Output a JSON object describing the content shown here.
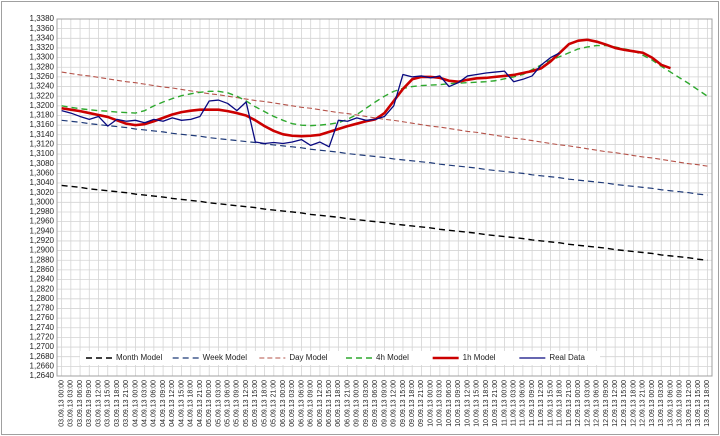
{
  "chart_data": {
    "type": "line",
    "categories": [
      "03.09.13 00:00",
      "03.09.13 03:00",
      "03.09.13 06:00",
      "03.09.13 09:00",
      "03.09.13 12:00",
      "03.09.13 15:00",
      "03.09.13 18:00",
      "03.09.13 21:00",
      "04.09.13 00:00",
      "04.09.13 03:00",
      "04.09.13 06:00",
      "04.09.13 09:00",
      "04.09.13 12:00",
      "04.09.13 15:00",
      "04.09.13 18:00",
      "04.09.13 21:00",
      "05.09.13 00:00",
      "05.09.13 03:00",
      "05.09.13 06:00",
      "05.09.13 09:00",
      "05.09.13 12:00",
      "05.09.13 15:00",
      "05.09.13 18:00",
      "05.09.13 21:00",
      "06.09.13 00:00",
      "06.09.13 03:00",
      "06.09.13 06:00",
      "06.09.13 09:00",
      "06.09.13 12:00",
      "06.09.13 15:00",
      "06.09.13 18:00",
      "06.09.13 21:00",
      "09.09.13 00:00",
      "09.09.13 03:00",
      "09.09.13 06:00",
      "09.09.13 09:00",
      "09.09.13 12:00",
      "09.09.13 15:00",
      "09.09.13 18:00",
      "09.09.13 21:00",
      "10.09.13 00:00",
      "10.09.13 03:00",
      "10.09.13 06:00",
      "10.09.13 09:00",
      "10.09.13 12:00",
      "10.09.13 15:00",
      "10.09.13 18:00",
      "10.09.13 21:00",
      "11.09.13 00:00",
      "11.09.13 03:00",
      "11.09.13 06:00",
      "11.09.13 09:00",
      "11.09.13 12:00",
      "11.09.13 15:00",
      "11.09.13 18:00",
      "11.09.13 21:00",
      "12.09.13 00:00",
      "12.09.13 03:00",
      "12.09.13 06:00",
      "12.09.13 09:00",
      "12.09.13 12:00",
      "12.09.13 15:00",
      "12.09.13 18:00",
      "12.09.13 21:00",
      "13.09.13 00:00",
      "13.09.13 03:00",
      "13.09.13 06:00",
      "13.09.13 09:00",
      "13.09.13 12:00",
      "13.09.13 15:00",
      "13.09.13 18:00"
    ],
    "series": [
      {
        "name": "Month Model",
        "color": "#000000",
        "dash": "6,4",
        "width": 1.4,
        "values": [
          1.3035,
          1.3033,
          1.3031,
          1.3028,
          1.3026,
          1.3024,
          1.3022,
          1.302,
          1.3017,
          1.3015,
          1.3013,
          1.3011,
          1.3008,
          1.3006,
          1.3004,
          1.3002,
          1.2999,
          1.2997,
          1.2995,
          1.2993,
          1.2991,
          1.2989,
          1.2986,
          1.2984,
          1.2982,
          1.298,
          1.2978,
          1.2975,
          1.2973,
          1.2971,
          1.2969,
          1.2966,
          1.2964,
          1.2962,
          1.296,
          1.2958,
          1.2955,
          1.2953,
          1.2951,
          1.2949,
          1.2947,
          1.2944,
          1.2942,
          1.294,
          1.2938,
          1.2936,
          1.2933,
          1.2931,
          1.2929,
          1.2927,
          1.2925,
          1.2922,
          1.292,
          1.2918,
          1.2916,
          1.2913,
          1.2911,
          1.2909,
          1.2907,
          1.2905,
          1.2902,
          1.29,
          1.2898,
          1.2896,
          1.2894,
          1.2891,
          1.2889,
          1.2887,
          1.2885,
          1.2882,
          1.288
        ]
      },
      {
        "name": "Week Model",
        "color": "#1f3a78",
        "dash": "6,4",
        "width": 1.2,
        "values": [
          1.317,
          1.3168,
          1.3166,
          1.3163,
          1.3161,
          1.3159,
          1.3157,
          1.3155,
          1.3152,
          1.315,
          1.3148,
          1.3146,
          1.3143,
          1.3141,
          1.3139,
          1.3137,
          1.3134,
          1.3132,
          1.313,
          1.3128,
          1.3126,
          1.3124,
          1.3121,
          1.3119,
          1.3117,
          1.3115,
          1.3113,
          1.311,
          1.3108,
          1.3106,
          1.3104,
          1.3101,
          1.3099,
          1.3097,
          1.3095,
          1.3093,
          1.309,
          1.3088,
          1.3086,
          1.3084,
          1.3082,
          1.3079,
          1.3077,
          1.3075,
          1.3073,
          1.3071,
          1.3068,
          1.3066,
          1.3064,
          1.3062,
          1.306,
          1.3057,
          1.3055,
          1.3053,
          1.3051,
          1.3048,
          1.3046,
          1.3044,
          1.3042,
          1.304,
          1.3037,
          1.3035,
          1.3033,
          1.3031,
          1.3029,
          1.3026,
          1.3024,
          1.3022,
          1.302,
          1.3017,
          1.3015
        ]
      },
      {
        "name": "Day Model",
        "color": "#b5534a",
        "dash": "5,3",
        "width": 1.1,
        "values": [
          1.327,
          1.3267,
          1.3264,
          1.3262,
          1.3259,
          1.3256,
          1.3253,
          1.325,
          1.3248,
          1.3245,
          1.3242,
          1.3239,
          1.3237,
          1.3234,
          1.3231,
          1.3228,
          1.3225,
          1.3223,
          1.322,
          1.3217,
          1.3214,
          1.3211,
          1.3209,
          1.3206,
          1.3203,
          1.32,
          1.3197,
          1.3195,
          1.3192,
          1.3189,
          1.3186,
          1.3184,
          1.3181,
          1.3178,
          1.3175,
          1.3172,
          1.317,
          1.3167,
          1.3164,
          1.3161,
          1.3158,
          1.3156,
          1.3153,
          1.315,
          1.3147,
          1.3145,
          1.3142,
          1.3139,
          1.3136,
          1.3133,
          1.3131,
          1.3128,
          1.3125,
          1.3122,
          1.3119,
          1.3117,
          1.3114,
          1.3111,
          1.3108,
          1.3105,
          1.3103,
          1.31,
          1.3097,
          1.3094,
          1.3092,
          1.3089,
          1.3086,
          1.3083,
          1.308,
          1.3078,
          1.3075
        ]
      },
      {
        "name": "4h Model",
        "color": "#2ea82e",
        "dash": "6,4",
        "width": 1.4,
        "values": [
          1.32,
          1.3197,
          1.3194,
          1.3192,
          1.319,
          1.3189,
          1.3187,
          1.3186,
          1.3185,
          1.319,
          1.32,
          1.3208,
          1.3215,
          1.3221,
          1.3225,
          1.3228,
          1.323,
          1.323,
          1.3227,
          1.322,
          1.321,
          1.3198,
          1.3188,
          1.3178,
          1.317,
          1.3163,
          1.316,
          1.3159,
          1.316,
          1.3162,
          1.3165,
          1.3172,
          1.3182,
          1.3195,
          1.3208,
          1.322,
          1.323,
          1.3236,
          1.324,
          1.3242,
          1.3243,
          1.3244,
          1.3246,
          1.3247,
          1.3248,
          1.3249,
          1.325,
          1.3252,
          1.3256,
          1.326,
          1.3265,
          1.3275,
          1.3285,
          1.3295,
          1.3302,
          1.331,
          1.3318,
          1.3322,
          1.3325,
          1.3325,
          1.3322,
          1.3318,
          1.3314,
          1.3305,
          1.3295,
          1.3282,
          1.327,
          1.3258,
          1.3246,
          1.3233,
          1.322
        ]
      },
      {
        "name": "1h Model",
        "color": "#cc0000",
        "dash": "none",
        "width": 2.6,
        "values": [
          1.3195,
          1.3192,
          1.3189,
          1.3185,
          1.3181,
          1.3177,
          1.317,
          1.3163,
          1.316,
          1.3162,
          1.3168,
          1.3175,
          1.3182,
          1.3187,
          1.319,
          1.3192,
          1.3192,
          1.3192,
          1.3189,
          1.3185,
          1.318,
          1.317,
          1.3158,
          1.3148,
          1.3141,
          1.3138,
          1.3137,
          1.3138,
          1.314,
          1.3146,
          1.3152,
          1.3158,
          1.3163,
          1.3168,
          1.3172,
          1.3185,
          1.321,
          1.3235,
          1.3255,
          1.326,
          1.326,
          1.3258,
          1.3252,
          1.325,
          1.3254,
          1.3257,
          1.3258,
          1.326,
          1.3262,
          1.3264,
          1.3268,
          1.3272,
          1.3278,
          1.3292,
          1.331,
          1.3328,
          1.3335,
          1.3337,
          1.3333,
          1.3327,
          1.332,
          1.3316,
          1.3313,
          1.331,
          1.33,
          1.3285,
          1.3278,
          null,
          null,
          null,
          null
        ]
      },
      {
        "name": "Real Data",
        "color": "#0a0a80",
        "dash": "none",
        "width": 1.3,
        "values": [
          1.319,
          1.3185,
          1.3178,
          1.3172,
          1.3178,
          1.3158,
          1.3172,
          1.3168,
          1.317,
          1.3165,
          1.3172,
          1.3168,
          1.3175,
          1.317,
          1.3172,
          1.3178,
          1.321,
          1.3212,
          1.3205,
          1.319,
          1.3208,
          1.3125,
          1.3122,
          1.3124,
          1.3122,
          1.3125,
          1.313,
          1.3118,
          1.3125,
          1.3115,
          1.317,
          1.3168,
          1.3175,
          1.317,
          1.3172,
          1.3178,
          1.32,
          1.3265,
          1.326,
          1.3262,
          1.3258,
          1.3262,
          1.324,
          1.3248,
          1.3262,
          1.3265,
          1.3268,
          1.327,
          1.3272,
          1.325,
          1.3255,
          1.3262,
          1.3285,
          1.33,
          1.331,
          null,
          null,
          null,
          null,
          null,
          null,
          null,
          null,
          null,
          null,
          null,
          null,
          null,
          null,
          null,
          null
        ]
      }
    ],
    "ylim": [
      1.264,
      1.338
    ],
    "yticks": [
      {
        "value": 1.264,
        "label": "1,2640"
      },
      {
        "value": 1.266,
        "label": "1,2660"
      },
      {
        "value": 1.268,
        "label": "1,2680"
      },
      {
        "value": 1.27,
        "label": "1,2700"
      },
      {
        "value": 1.272,
        "label": "1,2720"
      },
      {
        "value": 1.274,
        "label": "1,2740"
      },
      {
        "value": 1.276,
        "label": "1,2760"
      },
      {
        "value": 1.278,
        "label": "1,2780"
      },
      {
        "value": 1.28,
        "label": "1,2800"
      },
      {
        "value": 1.282,
        "label": "1,2820"
      },
      {
        "value": 1.284,
        "label": "1,2840"
      },
      {
        "value": 1.286,
        "label": "1,2860"
      },
      {
        "value": 1.288,
        "label": "1,2880"
      },
      {
        "value": 1.29,
        "label": "1,2900"
      },
      {
        "value": 1.292,
        "label": "1,2920"
      },
      {
        "value": 1.294,
        "label": "1,2940"
      },
      {
        "value": 1.296,
        "label": "1,2960"
      },
      {
        "value": 1.298,
        "label": "1,2980"
      },
      {
        "value": 1.3,
        "label": "1,3000"
      },
      {
        "value": 1.302,
        "label": "1,3020"
      },
      {
        "value": 1.304,
        "label": "1,3040"
      },
      {
        "value": 1.306,
        "label": "1,3060"
      },
      {
        "value": 1.308,
        "label": "1,3080"
      },
      {
        "value": 1.31,
        "label": "1,3100"
      },
      {
        "value": 1.312,
        "label": "1,3120"
      },
      {
        "value": 1.314,
        "label": "1,3140"
      },
      {
        "value": 1.316,
        "label": "1,3160"
      },
      {
        "value": 1.318,
        "label": "1,3180"
      },
      {
        "value": 1.32,
        "label": "1,3200"
      },
      {
        "value": 1.322,
        "label": "1,3220"
      },
      {
        "value": 1.324,
        "label": "1,3240"
      },
      {
        "value": 1.326,
        "label": "1,3260"
      },
      {
        "value": 1.328,
        "label": "1,3280"
      },
      {
        "value": 1.33,
        "label": "1,3300"
      },
      {
        "value": 1.332,
        "label": "1,3320"
      },
      {
        "value": 1.334,
        "label": "1,3340"
      },
      {
        "value": 1.336,
        "label": "1,3360"
      },
      {
        "value": 1.338,
        "label": "1,3380"
      }
    ],
    "grid": true,
    "legend": "bottom"
  }
}
